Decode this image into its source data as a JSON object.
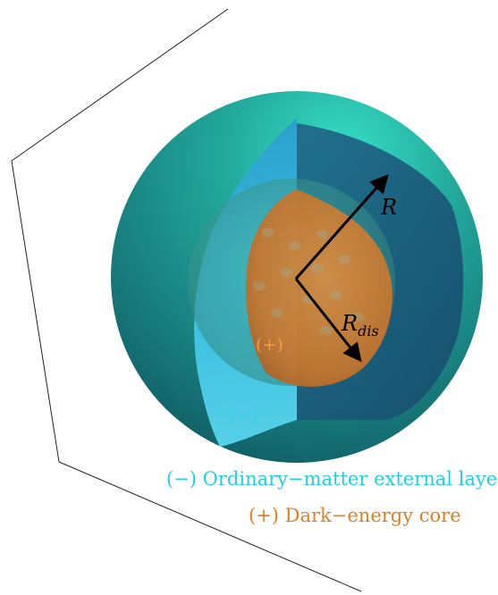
{
  "labels": {
    "outer_radius": "R",
    "inner_radius": "R",
    "inner_radius_sub": "dis",
    "outer_sign": "(−)",
    "core_sign": "(+)"
  },
  "captions": {
    "outer_layer": "(−) Ordinary−matter external layer",
    "core": "(+) Dark−energy core"
  },
  "colors": {
    "outer_shell": "#1e8e86",
    "outer_shell_highlight": "#35d9c3",
    "cut_face": "#1d5d7c",
    "cut_face_light": "#3ab6d8",
    "core": "#d9883a",
    "core_text": "#e07f1e",
    "outer_text": "#22cfe0",
    "box_lines": "#222222"
  }
}
